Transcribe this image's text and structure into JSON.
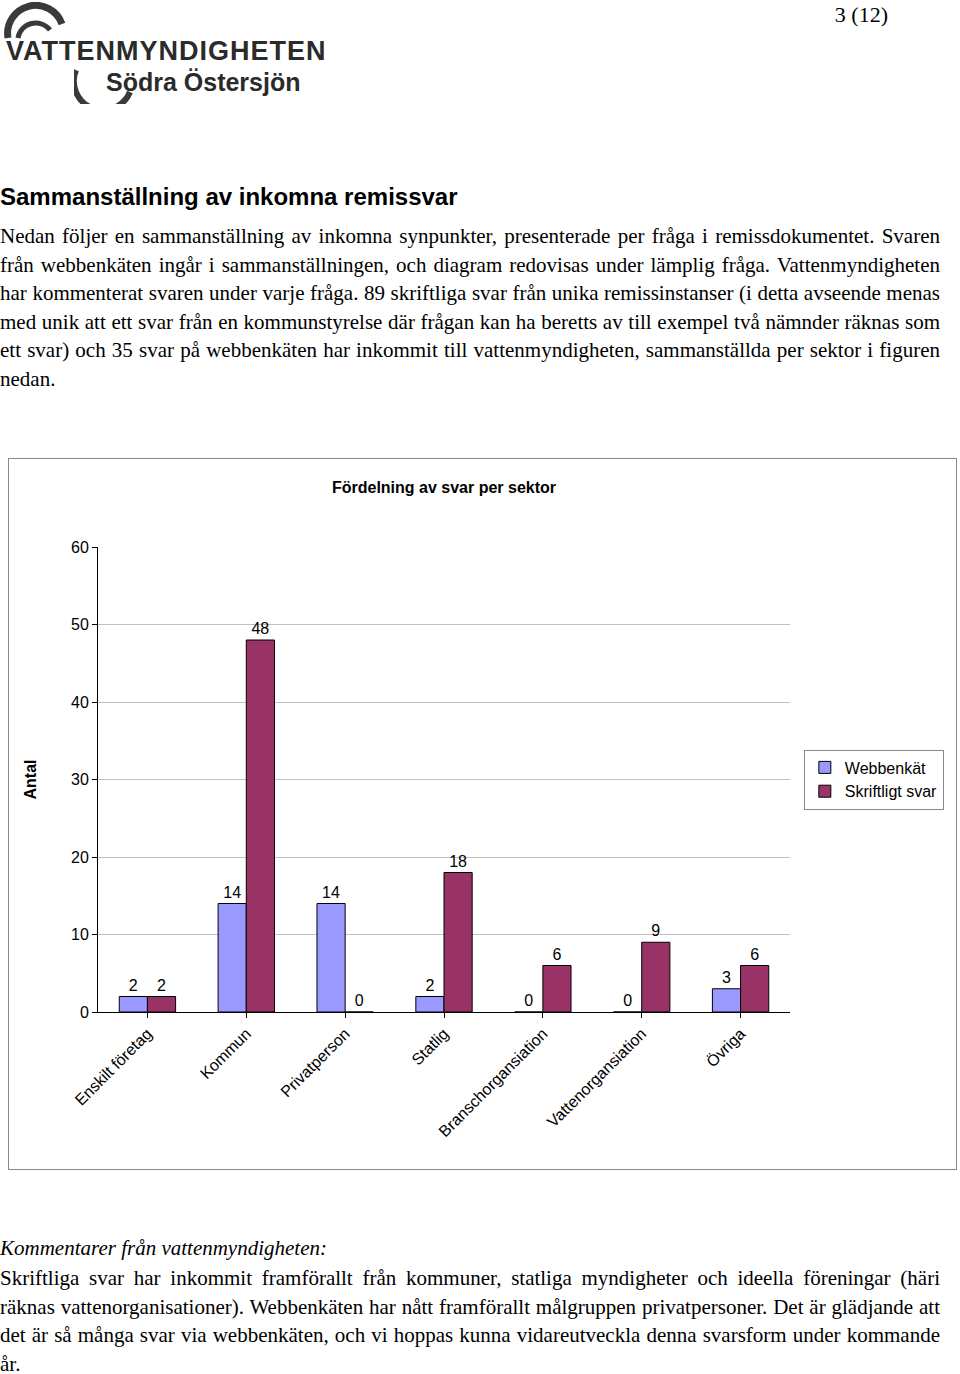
{
  "header": {
    "logo_line1": "VATTENMYNDIGHETEN",
    "logo_line2": "Södra Östersjön",
    "page": "3 (12)"
  },
  "heading": "Sammanställning av inkomna remissvar",
  "intro": "Nedan följer en sammanställning av inkomna synpunkter, presenterade per fråga i remissdokumentet. Svaren från webbenkäten ingår i sammanställningen, och diagram redovisas under lämplig fråga. Vattenmyndigheten har kommenterat svaren under varje fråga. 89 skriftliga svar från unika remissinstanser (i detta avseende menas med unik att ett svar från en kommunstyrelse där frågan kan ha beretts av till exempel två nämnder räknas som ett svar) och 35 svar på webbenkäten har inkommit till vattenmyndigheten, sammanställda per sektor i figuren nedan.",
  "chart_data": {
    "type": "bar",
    "title": "Fördelning av svar per sektor",
    "y_label": "Antal",
    "categories": [
      "Enskilt företag",
      "Kommun",
      "Privatperson",
      "Statlig",
      "Branschorgansiation",
      "Vattenorgansiation",
      "Övriga"
    ],
    "series": [
      {
        "name": "Webbenkät",
        "color": "#9999ff",
        "values": [
          2,
          14,
          14,
          2,
          0,
          0,
          3
        ]
      },
      {
        "name": "Skriftligt svar",
        "color": "#993366",
        "values": [
          2,
          48,
          0,
          18,
          6,
          9,
          6
        ]
      }
    ],
    "ylim": [
      0,
      60
    ],
    "yticks": [
      0,
      10,
      20,
      30,
      40,
      50,
      60
    ],
    "grid": true,
    "legend": "right",
    "data_labels": true
  },
  "comments": {
    "heading": "Kommentarer från vattenmyndigheten:",
    "text": "Skriftliga svar har inkommit framförallt från kommuner, statliga myndigheter och ideella föreningar (häri räknas vattenorganisationer). Webbenkäten har nått framförallt målgruppen privatpersoner. Det är glädjande att det är så många svar via webbenkäten, och vi hoppas kunna vidareutveckla denna svarsform under kommande år."
  }
}
